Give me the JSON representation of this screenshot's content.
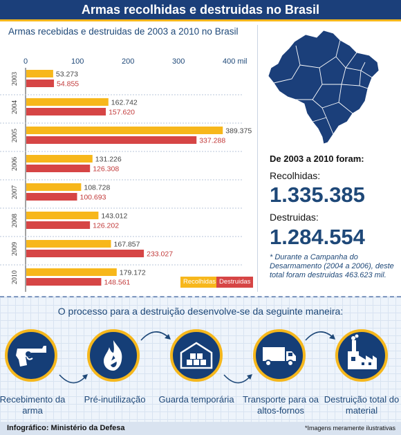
{
  "header": {
    "title": "Armas recolhidas e destruidas no Brasil"
  },
  "chart_title": "Armas recebidas e destruidas de 2003 a 2010 no Brasil",
  "chart_data": {
    "type": "bar",
    "orientation": "horizontal",
    "title": "Armas recebidas e destruidas de 2003 a 2010 no Brasil",
    "categories": [
      "2003",
      "2004",
      "2005",
      "2006",
      "2007",
      "2008",
      "2009",
      "2010"
    ],
    "series": [
      {
        "name": "Recolhidas",
        "color": "#f7b71b",
        "values": [
          53273,
          162742,
          389375,
          131226,
          108728,
          143012,
          167857,
          179172
        ],
        "labels": [
          "53.273",
          "162.742",
          "389.375",
          "131.226",
          "108.728",
          "143.012",
          "167.857",
          "179.172"
        ]
      },
      {
        "name": "Destruidas",
        "color": "#d64545",
        "values": [
          54855,
          157620,
          337288,
          126308,
          100693,
          126202,
          233027,
          148561
        ],
        "labels": [
          "54.855",
          "157.620",
          "337.288",
          "126.308",
          "100.693",
          "126.202",
          "233.027",
          "148.561"
        ]
      }
    ],
    "xticks": [
      0,
      100000,
      200000,
      300000,
      400000
    ],
    "xtick_labels": [
      "0",
      "100",
      "200",
      "300",
      "400 mil"
    ],
    "xlim": [
      0,
      400000
    ],
    "legend": "bottom-right",
    "grid": false
  },
  "legend": {
    "recolhidas": "Recolhidas",
    "destruidas": "Destruidas"
  },
  "stats": {
    "heading": "De 2003 a 2010 foram:",
    "recolhidas_label": "Recolhidas:",
    "recolhidas_value": "1.335.385",
    "destruidas_label": "Destruidas:",
    "destruidas_value": "1.284.554",
    "footnote": "* Durante a Campanha do Desarmamento (2004 a 2006), deste total foram destruidas 463.623 mil."
  },
  "process": {
    "title": "O processo para a destruição desenvolve-se da seguinte maneira:",
    "steps": [
      {
        "label": "Recebimento da arma",
        "icon": "revolver-icon"
      },
      {
        "label": "Pré-inutilização",
        "icon": "flame-icon"
      },
      {
        "label": "Guarda temporária",
        "icon": "warehouse-boxes-icon"
      },
      {
        "label": "Transporte para oa altos-fornos",
        "icon": "truck-icon"
      },
      {
        "label": "Destruição total do material",
        "icon": "factory-icon"
      }
    ]
  },
  "footer": {
    "credit": "Infográfico: Ministério da Defesa",
    "note": "*Imagens meramente ilustrativas"
  },
  "colors": {
    "navy": "#1b3f7a",
    "gold": "#f5b71c",
    "bar_yellow": "#f7b71b",
    "bar_red": "#d64545",
    "text_blue": "#1e4878"
  }
}
